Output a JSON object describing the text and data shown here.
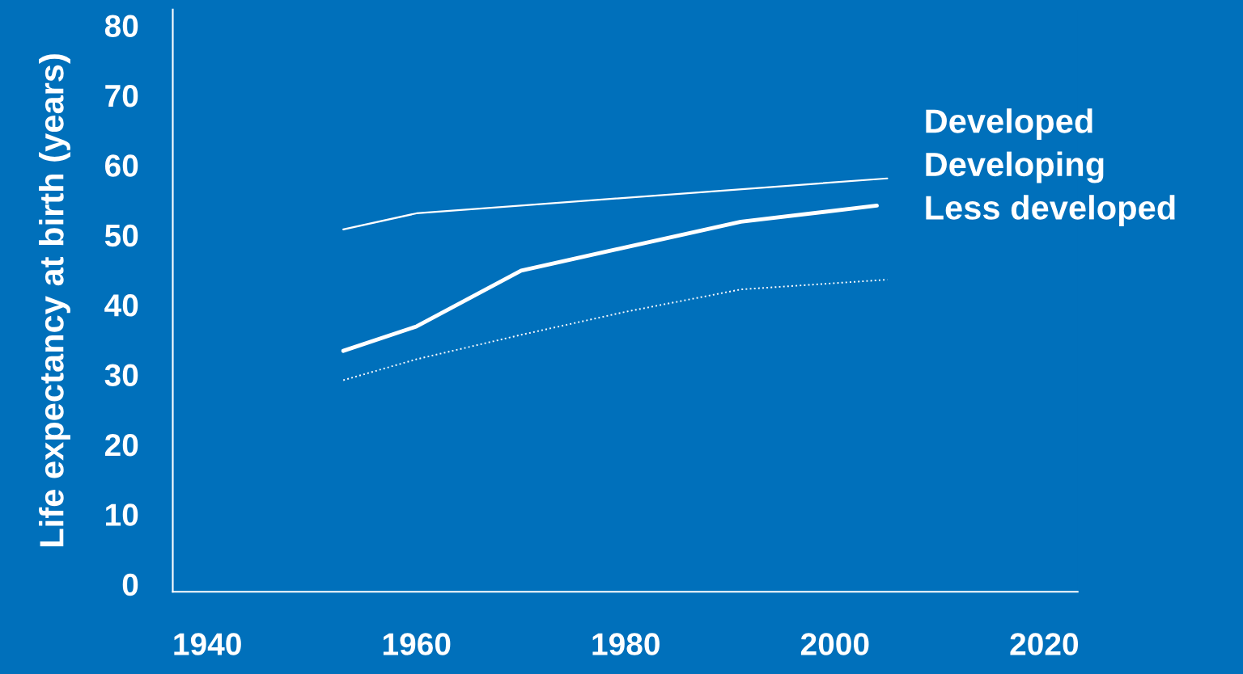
{
  "chart_data": {
    "type": "line",
    "ylabel": "Life expectancy at birth (years)",
    "xlim": [
      1936.7,
      2023.2
    ],
    "xticks": [
      1940,
      1960,
      1980,
      2000,
      2020
    ],
    "ylim": [
      -1.1,
      82.3
    ],
    "yticks": [
      0,
      10,
      20,
      30,
      40,
      50,
      60,
      70,
      80
    ],
    "grid": false,
    "legend": "right",
    "marker": "none",
    "series": [
      {
        "name": "Developed",
        "color": "#ffffff",
        "line_style": "solid",
        "x": [
          1953,
          1960,
          2005
        ],
        "values": [
          50.8,
          53.1,
          58.1
        ]
      },
      {
        "name": "Developing",
        "color": "#ffffff",
        "line_style": "solid",
        "x": [
          1953,
          1960,
          1970,
          1991,
          2004
        ],
        "values": [
          33.4,
          36.9,
          44.9,
          51.9,
          54.2
        ]
      },
      {
        "name": "Less developed",
        "color": "#ffffff",
        "line_style": "dotted",
        "x": [
          1953,
          1960,
          1970,
          1980,
          1991,
          2005
        ],
        "values": [
          29.2,
          32.2,
          35.7,
          39.0,
          42.2,
          43.6
        ]
      }
    ]
  }
}
